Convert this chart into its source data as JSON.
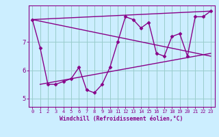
{
  "title": "",
  "xlabel": "Windchill (Refroidissement éolien,°C)",
  "ylabel": "",
  "background_color": "#cceeff",
  "line_color": "#880088",
  "grid_color": "#99cccc",
  "axis_color": "#880088",
  "text_color": "#880088",
  "xlim": [
    -0.5,
    23.5
  ],
  "ylim": [
    4.7,
    8.3
  ],
  "yticks": [
    5,
    6,
    7
  ],
  "xticks": [
    0,
    1,
    2,
    3,
    4,
    5,
    6,
    7,
    8,
    9,
    10,
    11,
    12,
    13,
    14,
    15,
    16,
    17,
    18,
    19,
    20,
    21,
    22,
    23
  ],
  "hours": [
    0,
    1,
    2,
    3,
    4,
    5,
    6,
    7,
    8,
    9,
    10,
    11,
    12,
    13,
    14,
    15,
    16,
    17,
    18,
    19,
    20,
    21,
    22,
    23
  ],
  "windchill": [
    7.8,
    6.8,
    5.5,
    5.5,
    5.6,
    5.7,
    6.1,
    5.3,
    5.2,
    5.5,
    6.1,
    7.0,
    7.9,
    7.8,
    7.5,
    7.7,
    6.6,
    6.5,
    7.2,
    7.3,
    6.5,
    7.9,
    7.9,
    8.1
  ],
  "trend_lines": [
    {
      "x": [
        0,
        23
      ],
      "y": [
        7.8,
        8.1
      ]
    },
    {
      "x": [
        0,
        23
      ],
      "y": [
        7.8,
        6.5
      ]
    },
    {
      "x": [
        1,
        23
      ],
      "y": [
        5.5,
        6.6
      ]
    }
  ],
  "marker_size": 2.5,
  "line_width": 1.0
}
